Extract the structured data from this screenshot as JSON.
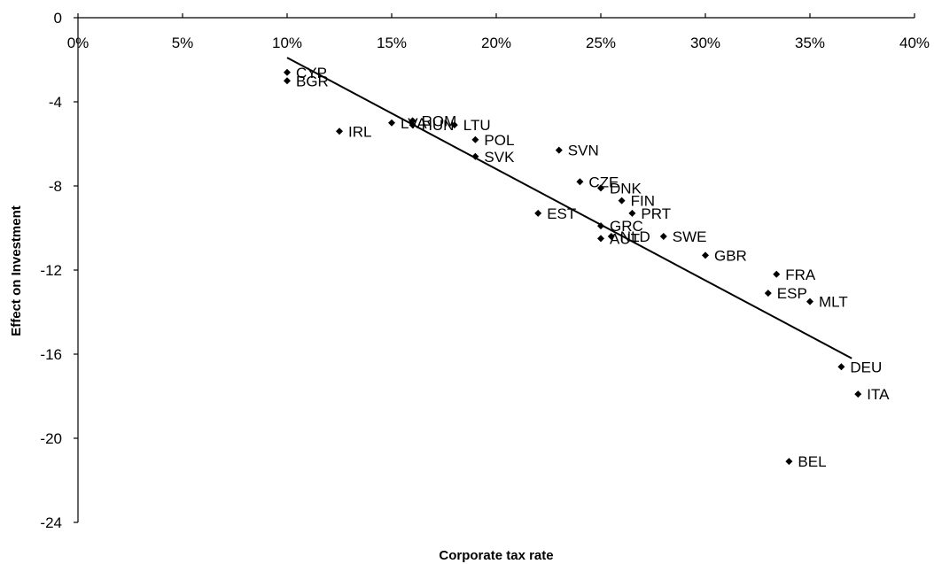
{
  "chart_data": {
    "type": "scatter",
    "title": "",
    "xlabel": "Corporate tax rate",
    "ylabel": "Effect on Investment",
    "xlim": [
      0,
      0.4
    ],
    "ylim": [
      -24,
      0
    ],
    "x_ticks": [
      {
        "value": 0.0,
        "label": "0%"
      },
      {
        "value": 0.05,
        "label": "5%"
      },
      {
        "value": 0.1,
        "label": "10%"
      },
      {
        "value": 0.15,
        "label": "15%"
      },
      {
        "value": 0.2,
        "label": "20%"
      },
      {
        "value": 0.25,
        "label": "25%"
      },
      {
        "value": 0.3,
        "label": "30%"
      },
      {
        "value": 0.35,
        "label": "35%"
      },
      {
        "value": 0.4,
        "label": "40%"
      }
    ],
    "y_ticks": [
      {
        "value": 0,
        "label": "0"
      },
      {
        "value": -4,
        "label": "-4"
      },
      {
        "value": -8,
        "label": "-8"
      },
      {
        "value": -12,
        "label": "-12"
      },
      {
        "value": -16,
        "label": "-16"
      },
      {
        "value": -20,
        "label": "-20"
      },
      {
        "value": -24,
        "label": "-24"
      }
    ],
    "grid": false,
    "legend": "none",
    "marker": "diamond",
    "marker_color": "#000000",
    "points": [
      {
        "label": "CYP",
        "x": 0.1,
        "y": -2.6
      },
      {
        "label": "BGR",
        "x": 0.1,
        "y": -3.0
      },
      {
        "label": "IRL",
        "x": 0.125,
        "y": -5.4
      },
      {
        "label": "LVA",
        "x": 0.15,
        "y": -5.0
      },
      {
        "label": "ROM",
        "x": 0.16,
        "y": -4.9
      },
      {
        "label": "HUN",
        "x": 0.16,
        "y": -5.1
      },
      {
        "label": "LTU",
        "x": 0.18,
        "y": -5.1
      },
      {
        "label": "POL",
        "x": 0.19,
        "y": -5.8
      },
      {
        "label": "SVK",
        "x": 0.19,
        "y": -6.6
      },
      {
        "label": "SVN",
        "x": 0.23,
        "y": -6.3
      },
      {
        "label": "CZE",
        "x": 0.24,
        "y": -7.8
      },
      {
        "label": "DNK",
        "x": 0.25,
        "y": -8.1
      },
      {
        "label": "FIN",
        "x": 0.26,
        "y": -8.7
      },
      {
        "label": "PRT",
        "x": 0.265,
        "y": -9.3
      },
      {
        "label": "EST",
        "x": 0.22,
        "y": -9.3
      },
      {
        "label": "GRC",
        "x": 0.25,
        "y": -9.9
      },
      {
        "label": "AUT",
        "x": 0.25,
        "y": -10.5
      },
      {
        "label": "NLD",
        "x": 0.255,
        "y": -10.4
      },
      {
        "label": "SWE",
        "x": 0.28,
        "y": -10.4
      },
      {
        "label": "GBR",
        "x": 0.3,
        "y": -11.3
      },
      {
        "label": "FRA",
        "x": 0.334,
        "y": -12.2
      },
      {
        "label": "ESP",
        "x": 0.33,
        "y": -13.1
      },
      {
        "label": "MLT",
        "x": 0.35,
        "y": -13.5
      },
      {
        "label": "DEU",
        "x": 0.365,
        "y": -16.6
      },
      {
        "label": "ITA",
        "x": 0.373,
        "y": -17.9
      },
      {
        "label": "BEL",
        "x": 0.34,
        "y": -21.1
      }
    ],
    "trendline": {
      "x1": 0.1,
      "y1": -1.9,
      "x2": 0.37,
      "y2": -16.2
    }
  }
}
